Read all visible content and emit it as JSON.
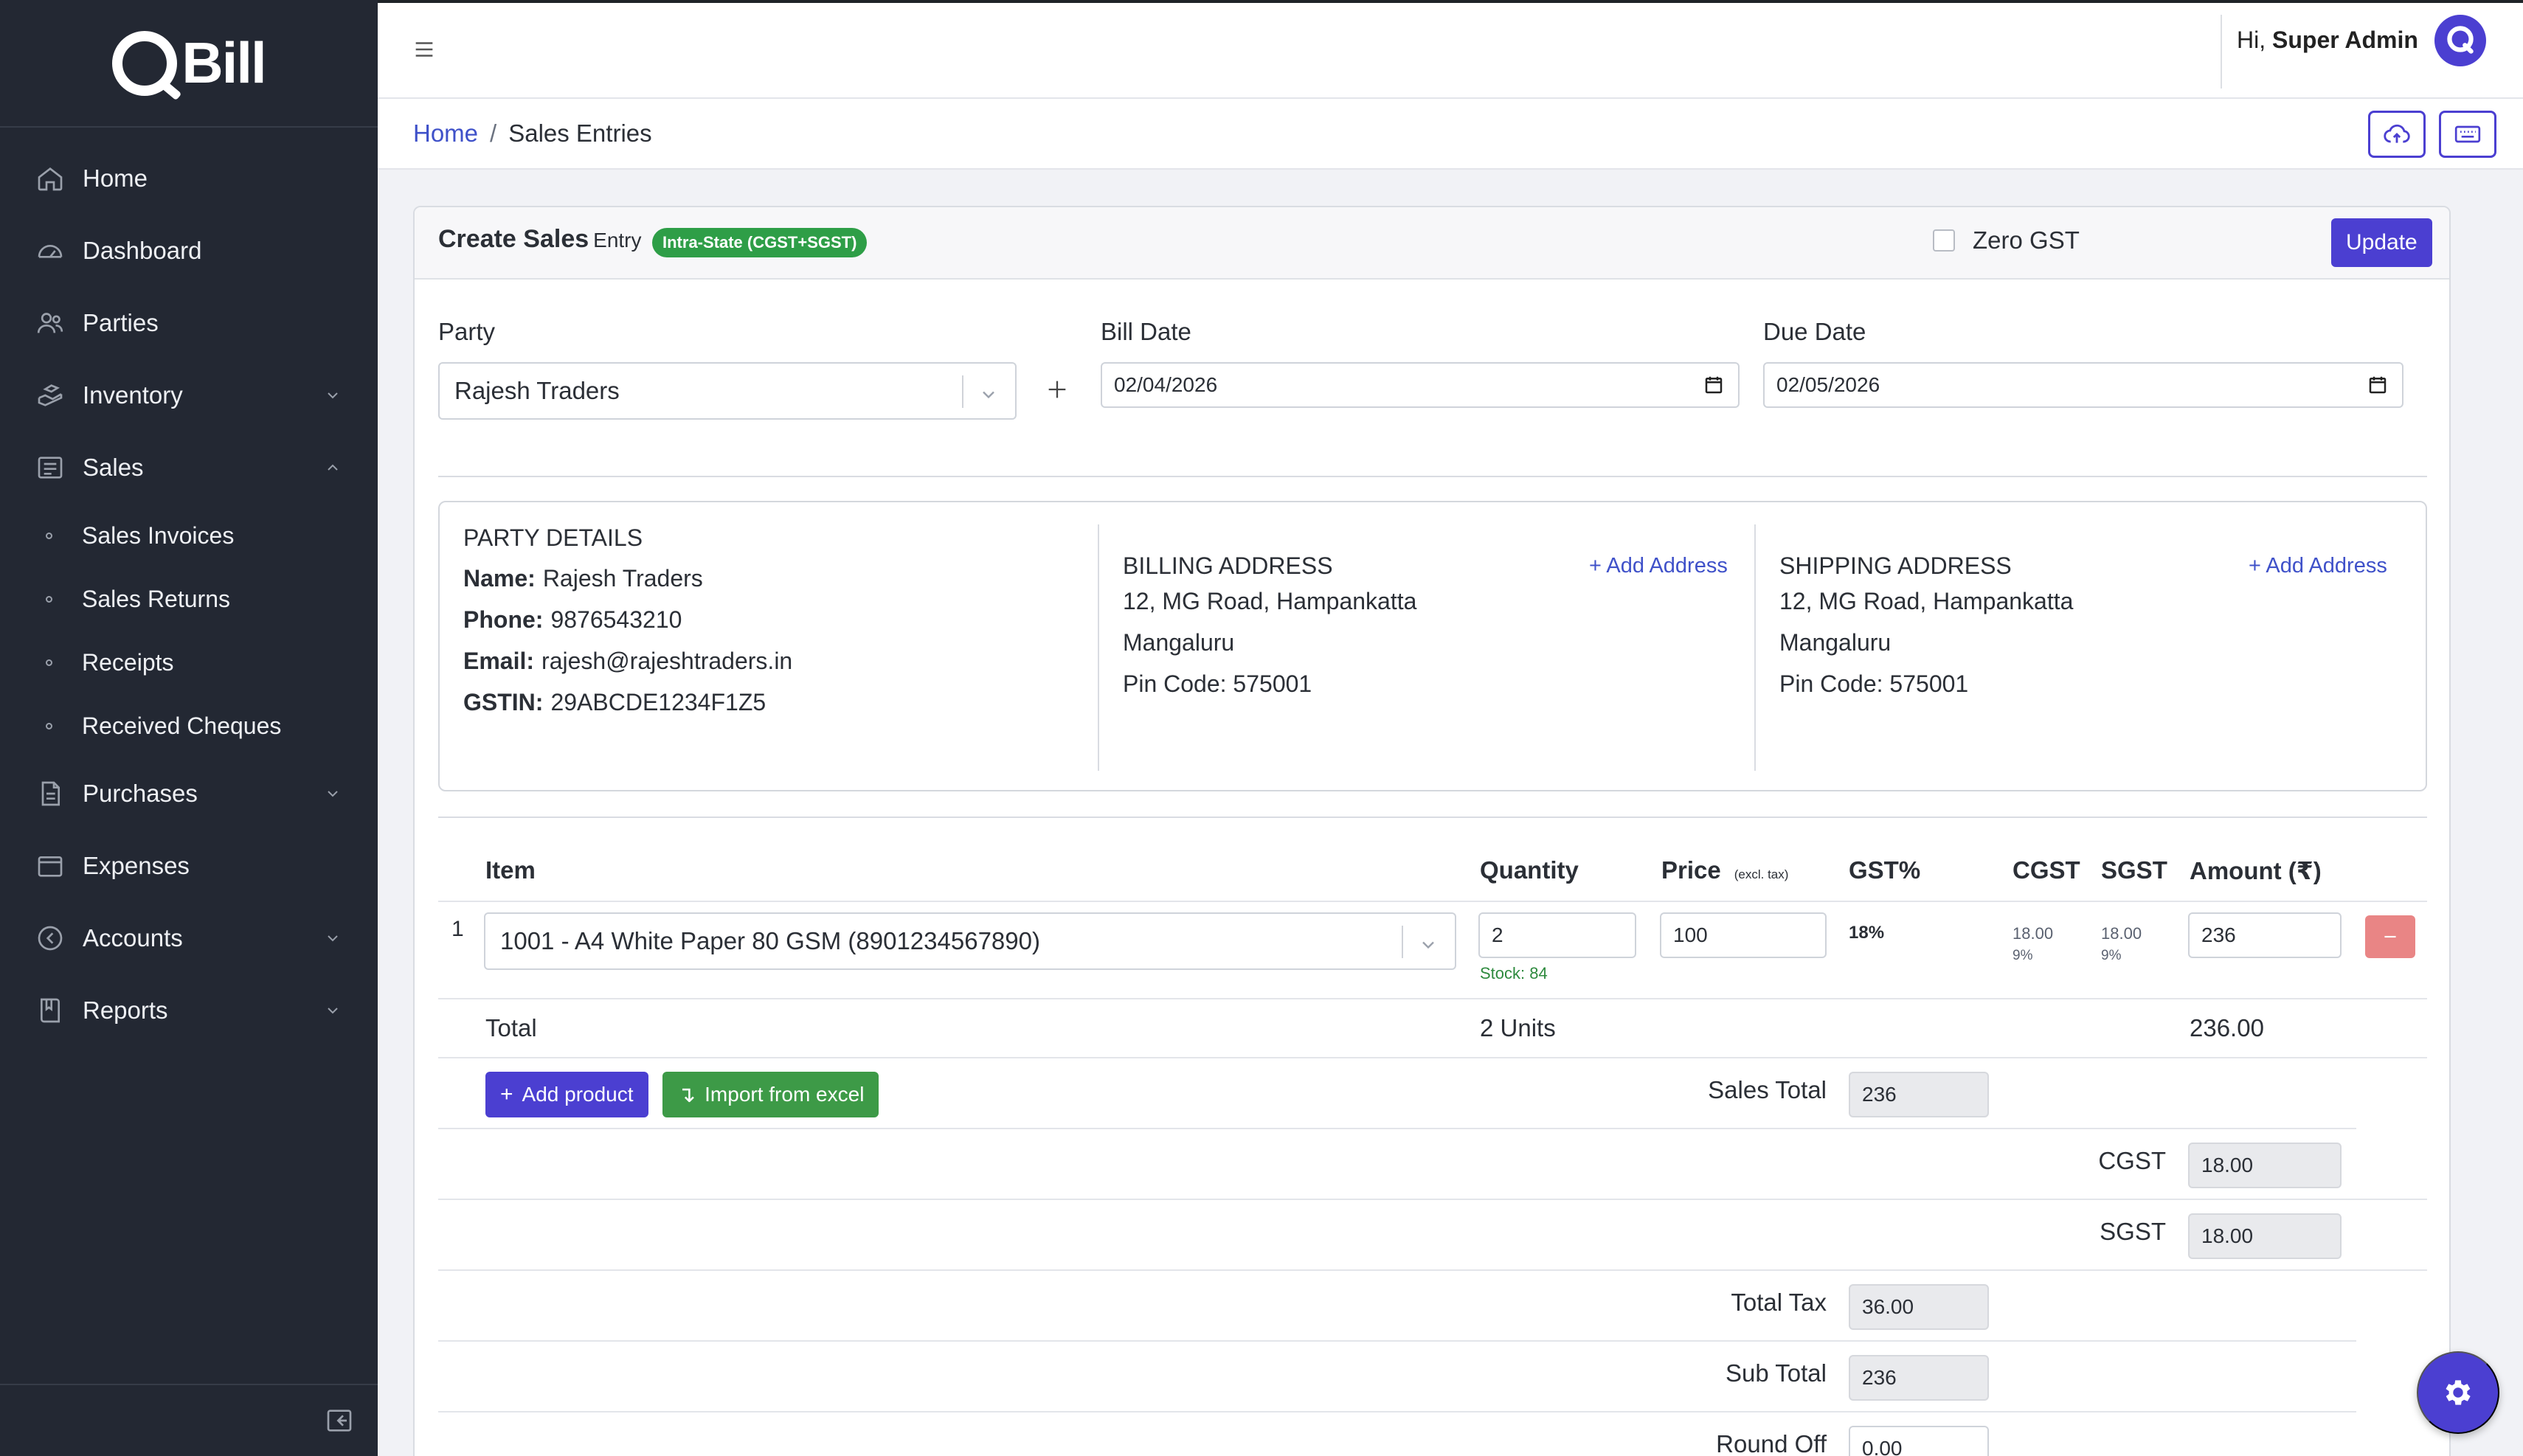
{
  "app": {
    "brand": "QBill"
  },
  "sidebar": {
    "items": [
      {
        "label": "Home",
        "icon": "home-icon"
      },
      {
        "label": "Dashboard",
        "icon": "dashboard-icon"
      },
      {
        "label": "Parties",
        "icon": "users-icon"
      },
      {
        "label": "Inventory",
        "icon": "inventory-icon",
        "expanded": false
      },
      {
        "label": "Sales",
        "icon": "sales-icon",
        "expanded": true
      },
      {
        "label": "Purchases",
        "icon": "purchases-icon",
        "expanded": false
      },
      {
        "label": "Expenses",
        "icon": "expenses-icon"
      },
      {
        "label": "Accounts",
        "icon": "accounts-icon",
        "expanded": false
      },
      {
        "label": "Reports",
        "icon": "reports-icon",
        "expanded": false
      }
    ],
    "sales_sub": [
      "Sales Invoices",
      "Sales Returns",
      "Receipts",
      "Received Cheques"
    ]
  },
  "header": {
    "greeting": "Hi,",
    "user": "Super Admin"
  },
  "breadcrumb": {
    "home": "Home",
    "separator": "/",
    "current": "Sales Entries"
  },
  "form": {
    "title": "Create Sales",
    "title_sub": "Entry",
    "badge": "Intra-State (CGST+SGST)",
    "zero_gst_label": "Zero GST",
    "update_label": "Update",
    "party_label": "Party",
    "party_value": "Rajesh Traders",
    "bill_date_label": "Bill Date",
    "bill_date": "02/04/2026",
    "due_date_label": "Due Date",
    "due_date": "02/05/2026"
  },
  "party_details": {
    "heading": "PARTY DETAILS",
    "name_label": "Name:",
    "name": "Rajesh Traders",
    "phone_label": "Phone:",
    "phone": "9876543210",
    "email_label": "Email:",
    "email": "rajesh@rajeshtraders.in",
    "gstin_label": "GSTIN:",
    "gstin": "29ABCDE1234F1Z5"
  },
  "billing": {
    "heading": "BILLING ADDRESS",
    "add": "+ Add Address",
    "line1": "12, MG Road, Hampankatta",
    "line2": "Mangaluru",
    "pin": "Pin Code: 575001"
  },
  "shipping": {
    "heading": "SHIPPING ADDRESS",
    "add": "+ Add Address",
    "line1": "12, MG Road, Hampankatta",
    "line2": "Mangaluru",
    "pin": "Pin Code: 575001"
  },
  "items_table": {
    "columns": {
      "item": "Item",
      "qty": "Quantity",
      "price": "Price",
      "price_note": "(excl. tax)",
      "gst": "GST%",
      "cgst": "CGST",
      "sgst": "SGST",
      "amount": "Amount (₹)"
    },
    "rows": [
      {
        "no": "1",
        "item": "1001 - A4 White Paper 80 GSM (8901234567890)",
        "qty": "2",
        "stock": "Stock: 84",
        "price": "100",
        "gst": "18%",
        "cgst": "18.00",
        "cgst_rate": "9%",
        "sgst": "18.00",
        "sgst_rate": "9%",
        "amount": "236"
      }
    ],
    "total_label": "Total",
    "total_units": "2 Units",
    "total_amount": "236.00"
  },
  "actions": {
    "add_product": "Add product",
    "import_excel": "Import from excel"
  },
  "summary": {
    "sales_total_label": "Sales Total",
    "sales_total": "236",
    "cgst_label": "CGST",
    "cgst": "18.00",
    "sgst_label": "SGST",
    "sgst": "18.00",
    "total_tax_label": "Total Tax",
    "total_tax": "36.00",
    "sub_total_label": "Sub Total",
    "sub_total": "236",
    "round_off_label": "Round Off",
    "round_off": "0.00"
  },
  "colors": {
    "accent": "#4b3fd1",
    "sidebar": "#232833",
    "success": "#3d9a47",
    "danger": "#e98585",
    "link": "#3f51c9"
  }
}
